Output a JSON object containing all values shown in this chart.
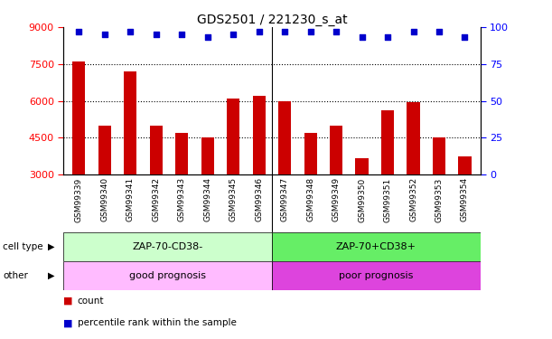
{
  "title": "GDS2501 / 221230_s_at",
  "samples": [
    "GSM99339",
    "GSM99340",
    "GSM99341",
    "GSM99342",
    "GSM99343",
    "GSM99344",
    "GSM99345",
    "GSM99346",
    "GSM99347",
    "GSM99348",
    "GSM99349",
    "GSM99350",
    "GSM99351",
    "GSM99352",
    "GSM99353",
    "GSM99354"
  ],
  "counts": [
    7600,
    5000,
    7200,
    5000,
    4700,
    4500,
    6100,
    6200,
    6000,
    4700,
    5000,
    3650,
    5600,
    5950,
    4500,
    3750
  ],
  "percentiles": [
    97,
    95,
    97,
    95,
    95,
    93,
    95,
    97,
    97,
    97,
    97,
    93,
    93,
    97,
    97,
    93
  ],
  "bar_color": "#cc0000",
  "dot_color": "#0000cc",
  "ylim_left": [
    3000,
    9000
  ],
  "ylim_right": [
    0,
    100
  ],
  "yticks_left": [
    3000,
    4500,
    6000,
    7500,
    9000
  ],
  "yticks_right": [
    0,
    25,
    50,
    75,
    100
  ],
  "cell_type_labels": [
    "ZAP-70-CD38-",
    "ZAP-70+CD38+"
  ],
  "cell_type_split": 8,
  "other_labels": [
    "good prognosis",
    "poor prognosis"
  ],
  "cell_type_color_left": "#ccffcc",
  "cell_type_color_right": "#66ee66",
  "other_color_left": "#ffbbff",
  "other_color_right": "#dd44dd",
  "legend_count_label": "count",
  "legend_pct_label": "percentile rank within the sample",
  "cell_type_row_label": "cell type",
  "other_row_label": "other",
  "xtick_bg_color": "#cccccc"
}
